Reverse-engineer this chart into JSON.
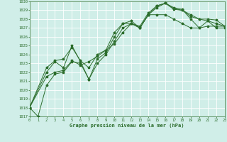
{
  "background_color": "#d0eee8",
  "grid_color": "#b0d8d0",
  "line_color": "#2d6e2d",
  "title": "Graphe pression niveau de la mer (hPa)",
  "xlim": [
    0,
    23
  ],
  "ylim": [
    1017,
    1030
  ],
  "xticks": [
    0,
    1,
    2,
    3,
    4,
    5,
    6,
    7,
    8,
    9,
    10,
    11,
    12,
    13,
    14,
    15,
    16,
    17,
    18,
    19,
    20,
    21,
    22,
    23
  ],
  "yticks": [
    1017,
    1018,
    1019,
    1020,
    1021,
    1022,
    1023,
    1024,
    1025,
    1026,
    1027,
    1028,
    1029,
    1030
  ],
  "series": [
    {
      "x": [
        0,
        1,
        2,
        3,
        4,
        5,
        6,
        7,
        8,
        9,
        10,
        11,
        12,
        13,
        14,
        15,
        16,
        17,
        18,
        19,
        20,
        21,
        22,
        23
      ],
      "y": [
        1018.0,
        1017.0,
        1020.5,
        1021.8,
        1022.0,
        1023.2,
        1023.0,
        1021.2,
        1023.0,
        1024.0,
        1025.5,
        1027.0,
        1027.5,
        1027.0,
        1028.5,
        1029.5,
        1029.8,
        1029.3,
        1029.1,
        1028.0,
        1027.0,
        1027.8,
        1027.0,
        1027.0
      ]
    },
    {
      "x": [
        0,
        2,
        3,
        4,
        5,
        6,
        7,
        8,
        9,
        10,
        11,
        12,
        13,
        14,
        15,
        16,
        17,
        18,
        19,
        20,
        21,
        22,
        23
      ],
      "y": [
        1018.0,
        1021.5,
        1022.0,
        1022.2,
        1023.3,
        1022.8,
        1023.2,
        1023.8,
        1024.5,
        1025.2,
        1026.5,
        1027.5,
        1027.0,
        1028.5,
        1028.5,
        1028.5,
        1028.0,
        1027.5,
        1027.0,
        1027.0,
        1027.2,
        1027.2,
        1027.2
      ]
    },
    {
      "x": [
        0,
        2,
        3,
        4,
        5,
        6,
        7,
        8,
        9,
        10,
        11,
        12,
        13,
        14,
        15,
        16,
        17,
        18,
        19,
        20,
        21,
        22,
        23
      ],
      "y": [
        1018.0,
        1022.0,
        1023.2,
        1022.5,
        1025.0,
        1023.2,
        1021.2,
        1023.5,
        1024.2,
        1026.0,
        1027.5,
        1027.8,
        1027.0,
        1028.5,
        1029.3,
        1029.8,
        1029.2,
        1029.0,
        1028.3,
        1028.0,
        1028.0,
        1027.9,
        1027.2
      ]
    },
    {
      "x": [
        0,
        2,
        3,
        4,
        5,
        6,
        7,
        8,
        9,
        10,
        11,
        12,
        13,
        14,
        15,
        16,
        17,
        18,
        19,
        20,
        21,
        22,
        23
      ],
      "y": [
        1018.0,
        1022.5,
        1023.3,
        1023.5,
        1024.8,
        1023.3,
        1022.5,
        1024.0,
        1024.5,
        1026.5,
        1027.5,
        1027.5,
        1027.2,
        1028.7,
        1029.5,
        1029.8,
        1029.1,
        1029.0,
        1028.5,
        1028.0,
        1027.8,
        1027.5,
        1027.2
      ]
    }
  ]
}
